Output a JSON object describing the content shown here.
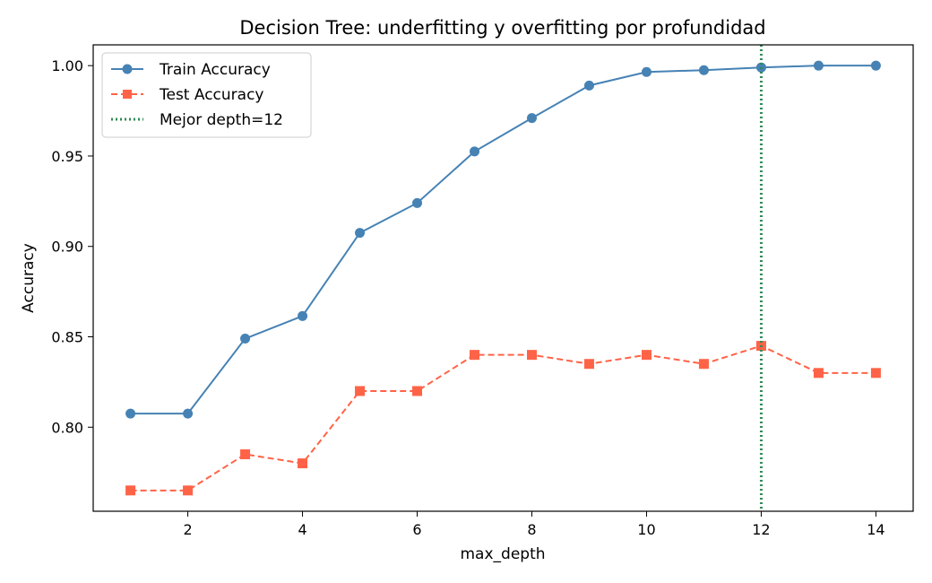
{
  "chart_data": {
    "type": "line",
    "title": "Decision Tree: underfitting y overfitting por profundidad",
    "xlabel": "max_depth",
    "ylabel": "Accuracy",
    "xlim": [
      0.35,
      14.65
    ],
    "ylim": [
      0.7535,
      1.0115
    ],
    "xticks": [
      2,
      4,
      6,
      8,
      10,
      12,
      14
    ],
    "yticks": [
      0.8,
      0.85,
      0.9,
      0.95,
      1.0
    ],
    "ytick_labels": [
      "0.80",
      "0.85",
      "0.90",
      "0.95",
      "1.00"
    ],
    "grid": false,
    "legend_position": "top-left",
    "x": [
      1,
      2,
      3,
      4,
      5,
      6,
      7,
      8,
      9,
      10,
      11,
      12,
      13,
      14
    ],
    "series": [
      {
        "name": "Train Accuracy",
        "color": "#4682b4",
        "marker": "circle",
        "linestyle": "solid",
        "values": [
          0.8075,
          0.8075,
          0.849,
          0.8615,
          0.9075,
          0.924,
          0.9525,
          0.971,
          0.989,
          0.9965,
          0.9975,
          0.999,
          1.0,
          1.0
        ]
      },
      {
        "name": "Test Accuracy",
        "color": "#ff6347",
        "marker": "square",
        "linestyle": "dashed",
        "values": [
          0.765,
          0.765,
          0.785,
          0.78,
          0.82,
          0.82,
          0.84,
          0.84,
          0.835,
          0.84,
          0.835,
          0.845,
          0.83,
          0.83
        ]
      }
    ],
    "reference_lines": [
      {
        "name": "Mejor depth=12",
        "orientation": "vertical",
        "x": 12,
        "color": "#2e8b57",
        "linestyle": "dotted"
      }
    ]
  }
}
